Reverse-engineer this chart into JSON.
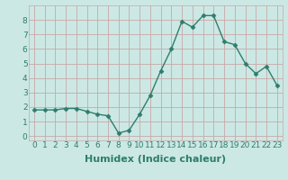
{
  "x": [
    0,
    1,
    2,
    3,
    4,
    5,
    6,
    7,
    8,
    9,
    10,
    11,
    12,
    13,
    14,
    15,
    16,
    17,
    18,
    19,
    20,
    21,
    22,
    23
  ],
  "y": [
    1.8,
    1.8,
    1.8,
    1.9,
    1.9,
    1.7,
    1.5,
    1.4,
    0.2,
    0.4,
    1.5,
    2.8,
    4.5,
    6.0,
    7.9,
    7.5,
    8.3,
    8.3,
    6.5,
    6.3,
    5.0,
    4.3,
    4.8,
    3.5
  ],
  "line_color": "#2e7d6e",
  "marker": "D",
  "marker_size": 2.5,
  "line_width": 1.0,
  "xlabel": "Humidex (Indice chaleur)",
  "xlim": [
    -0.5,
    23.5
  ],
  "ylim": [
    -0.3,
    9.0
  ],
  "yticks": [
    0,
    1,
    2,
    3,
    4,
    5,
    6,
    7,
    8
  ],
  "xticks": [
    0,
    1,
    2,
    3,
    4,
    5,
    6,
    7,
    8,
    9,
    10,
    11,
    12,
    13,
    14,
    15,
    16,
    17,
    18,
    19,
    20,
    21,
    22,
    23
  ],
  "xtick_labels": [
    "0",
    "1",
    "2",
    "3",
    "4",
    "5",
    "6",
    "7",
    "8",
    "9",
    "10",
    "11",
    "12",
    "13",
    "14",
    "15",
    "16",
    "17",
    "18",
    "19",
    "20",
    "21",
    "22",
    "23"
  ],
  "background_color": "#cce8e4",
  "grid_color": "#c8a8a8",
  "tick_fontsize": 6.5,
  "xlabel_fontsize": 8,
  "xlabel_fontweight": "bold",
  "tick_color": "#2e7d6e",
  "label_color": "#2e7d6e"
}
